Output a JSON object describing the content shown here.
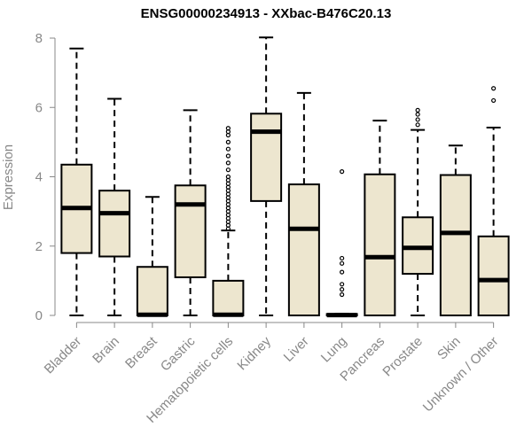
{
  "chart_data": {
    "type": "boxplot",
    "title": "ENSG00000234913 - XXbac-B476C20.13",
    "xlabel": "",
    "ylabel": "Expression",
    "ylim": [
      0,
      8
    ],
    "yticks": [
      0,
      2,
      4,
      6,
      8
    ],
    "grid": false,
    "legend": "none",
    "colors": {
      "box_fill": "#ede6cf",
      "box_stroke": "#000000",
      "axis": "#888888",
      "label": "#888888"
    },
    "categories": [
      "Bladder",
      "Brain",
      "Breast",
      "Gastric",
      "Hematopoietic cells",
      "Kidney",
      "Liver",
      "Lung",
      "Pancreas",
      "Prostate",
      "Skin",
      "Unknown / Other"
    ],
    "boxes": [
      {
        "name": "Bladder",
        "min": 0,
        "q1": 1.8,
        "median": 3.1,
        "q3": 4.35,
        "max": 7.7,
        "outliers": []
      },
      {
        "name": "Brain",
        "min": 0,
        "q1": 1.7,
        "median": 2.95,
        "q3": 3.6,
        "max": 6.25,
        "outliers": []
      },
      {
        "name": "Breast",
        "min": 0,
        "q1": 0,
        "median": 0.02,
        "q3": 1.4,
        "max": 3.42,
        "outliers": []
      },
      {
        "name": "Gastric",
        "min": 0,
        "q1": 1.1,
        "median": 3.2,
        "q3": 3.75,
        "max": 5.92,
        "outliers": []
      },
      {
        "name": "Hematopoietic cells",
        "min": 0,
        "q1": 0,
        "median": 0.02,
        "q3": 1.0,
        "max": 2.45,
        "outliers": [
          2.5,
          2.6,
          2.7,
          2.8,
          2.9,
          3.0,
          3.1,
          3.2,
          3.3,
          3.4,
          3.5,
          3.6,
          3.7,
          3.8,
          3.9,
          4.0,
          4.2,
          4.4,
          4.6,
          4.8,
          5.0,
          5.2,
          5.3,
          5.4
        ]
      },
      {
        "name": "Kidney",
        "min": 0,
        "q1": 3.3,
        "median": 5.3,
        "q3": 5.82,
        "max": 8.02,
        "outliers": []
      },
      {
        "name": "Liver",
        "min": 0,
        "q1": 0,
        "median": 2.5,
        "q3": 3.78,
        "max": 6.42,
        "outliers": []
      },
      {
        "name": "Lung",
        "min": 0,
        "q1": 0,
        "median": 0.01,
        "q3": 0.04,
        "max": 0.05,
        "outliers": [
          0.6,
          0.75,
          0.9,
          1.25,
          1.5,
          1.65,
          4.15
        ]
      },
      {
        "name": "Pancreas",
        "min": 0,
        "q1": 0,
        "median": 1.68,
        "q3": 4.07,
        "max": 5.62,
        "outliers": []
      },
      {
        "name": "Prostate",
        "min": 0,
        "q1": 1.2,
        "median": 1.95,
        "q3": 2.83,
        "max": 5.35,
        "outliers": [
          5.5,
          5.65,
          5.8,
          5.92
        ]
      },
      {
        "name": "Skin",
        "min": 0,
        "q1": 0,
        "median": 2.38,
        "q3": 4.05,
        "max": 4.9,
        "outliers": []
      },
      {
        "name": "Unknown / Other",
        "min": 0,
        "q1": 0,
        "median": 1.02,
        "q3": 2.28,
        "max": 5.42,
        "outliers": [
          6.2,
          6.55
        ]
      }
    ]
  }
}
